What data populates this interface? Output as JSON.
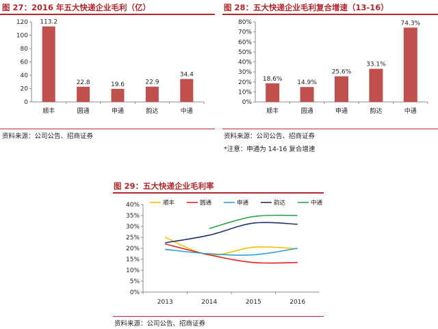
{
  "figures": {
    "fig27": {
      "title": "图 27：2016 年五大快递企业毛利（亿）",
      "source": "资料来源：公司公告、招商证券"
    },
    "fig28": {
      "title": "图 28：五大快递企业毛利复合增速（13-16）",
      "source": "资料来源：公司公告、招商证券",
      "note": "*注意：申通为 14-16 复合增速"
    },
    "fig29": {
      "title": "图 29：五大快递企业毛利率",
      "source": "资料来源：公司公告、招商证券"
    }
  },
  "chart_data": [
    {
      "id": "fig27",
      "type": "bar",
      "title": "2016 年五大快递企业毛利（亿）",
      "categories": [
        "顺丰",
        "圆通",
        "申通",
        "韵达",
        "中通"
      ],
      "values": [
        113.2,
        22.8,
        19.6,
        22.9,
        34.4
      ],
      "value_labels": [
        "113.2",
        "22.8",
        "19.6",
        "22.9",
        "34.4"
      ],
      "ylim": [
        0,
        120
      ],
      "yticks": [
        "0",
        "20",
        "40",
        "60",
        "80",
        "100",
        "120"
      ],
      "bar_color": "#c0504d"
    },
    {
      "id": "fig28",
      "type": "bar",
      "title": "五大快递企业毛利复合增速（13-16）",
      "categories": [
        "顺丰",
        "圆通",
        "申通",
        "韵达",
        "中通"
      ],
      "values": [
        18.6,
        14.9,
        25.6,
        33.1,
        74.3
      ],
      "value_labels": [
        "18.6%",
        "14.9%",
        "25.6%",
        "33.1%",
        "74.3%"
      ],
      "ylim": [
        0,
        80
      ],
      "yticks": [
        "0%",
        "10%",
        "20%",
        "30%",
        "40%",
        "50%",
        "60%",
        "70%",
        "80%"
      ],
      "bar_color": "#c0504d"
    },
    {
      "id": "fig29",
      "type": "line",
      "title": "五大快递企业毛利率",
      "x": [
        "2013",
        "2014",
        "2015",
        "2016"
      ],
      "ylim": [
        0,
        40
      ],
      "yticks": [
        "0%",
        "5%",
        "10%",
        "15%",
        "20%",
        "25%",
        "30%",
        "35%",
        "40%"
      ],
      "legend_position": "top",
      "series": [
        {
          "name": "顺丰",
          "color": "#f2c200",
          "values": [
            25.0,
            17.0,
            20.5,
            19.8
          ]
        },
        {
          "name": "圆通",
          "color": "#e0201b",
          "values": [
            22.0,
            17.0,
            13.5,
            13.5
          ]
        },
        {
          "name": "申通",
          "color": "#2aa2d6",
          "values": [
            19.5,
            17.5,
            17.0,
            20.0
          ]
        },
        {
          "name": "韵达",
          "color": "#1f2f6b",
          "values": [
            22.5,
            26.0,
            31.5,
            31.0
          ]
        },
        {
          "name": "中通",
          "color": "#2ca44a",
          "values": [
            null,
            29.0,
            34.5,
            35.0
          ]
        }
      ]
    }
  ]
}
